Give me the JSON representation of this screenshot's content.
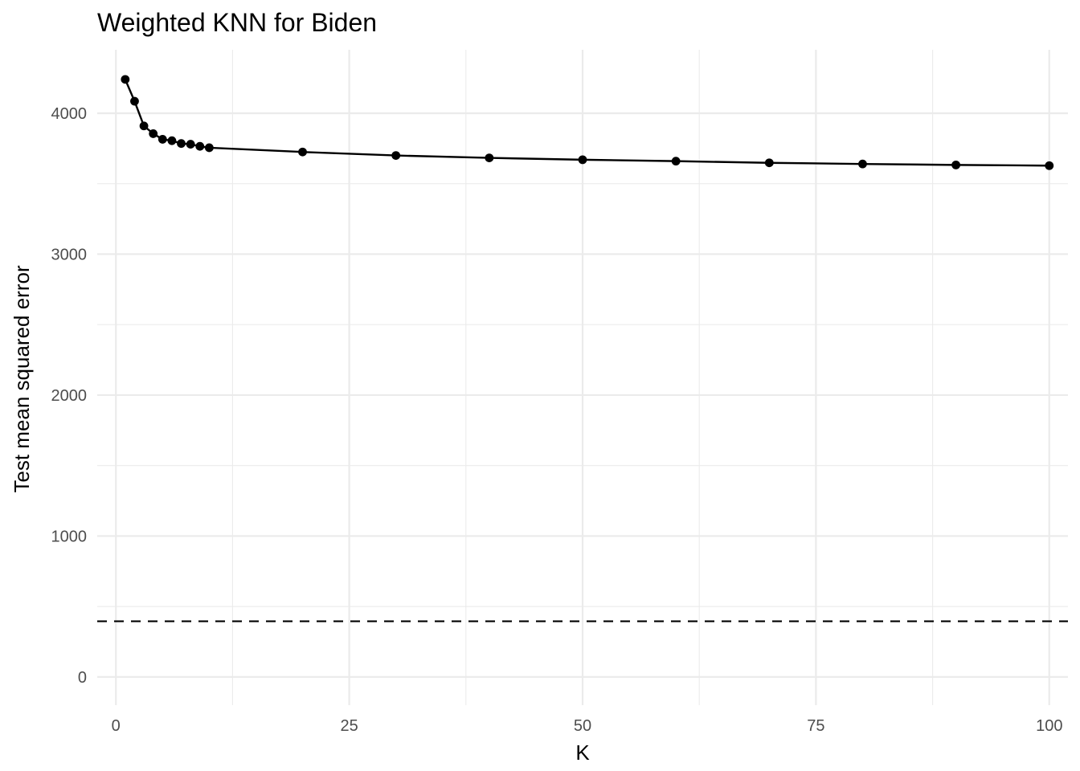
{
  "chart_data": {
    "type": "line",
    "title": "Weighted KNN for Biden",
    "xlabel": "K",
    "ylabel": "Test mean squared error",
    "xlim": [
      -2,
      102
    ],
    "ylim": [
      -200,
      4450
    ],
    "x_ticks": [
      0,
      25,
      50,
      75,
      100
    ],
    "x_tick_labels": [
      "0",
      "25",
      "50",
      "75",
      "100"
    ],
    "x_minor_ticks": [
      12.5,
      37.5,
      62.5,
      87.5
    ],
    "y_ticks": [
      0,
      1000,
      2000,
      3000,
      4000
    ],
    "y_tick_labels": [
      "0",
      "1000",
      "2000",
      "3000",
      "4000"
    ],
    "y_minor_ticks": [
      500,
      1500,
      2500,
      3500
    ],
    "grid": true,
    "legend": "none",
    "series": [
      {
        "x": [
          1,
          2,
          3,
          4,
          5,
          6,
          7,
          8,
          9,
          10,
          20,
          30,
          40,
          50,
          60,
          70,
          80,
          90,
          100
        ],
        "y": [
          4240,
          4085,
          3910,
          3855,
          3815,
          3805,
          3785,
          3780,
          3765,
          3755,
          3725,
          3700,
          3683,
          3670,
          3660,
          3648,
          3640,
          3633,
          3628
        ],
        "color": "#000000",
        "markers": true
      }
    ],
    "reference_line": {
      "orientation": "horizontal",
      "y": 395,
      "style": "dashed",
      "color": "#000000"
    }
  }
}
